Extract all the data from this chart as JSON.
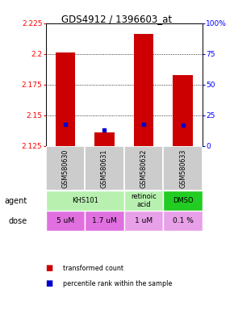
{
  "title": "GDS4912 / 1396603_at",
  "samples": [
    "GSM580630",
    "GSM580631",
    "GSM580632",
    "GSM580633"
  ],
  "bar_bottoms": [
    2.125,
    2.125,
    2.125,
    2.125
  ],
  "bar_tops": [
    2.201,
    2.136,
    2.216,
    2.183
  ],
  "blue_values": [
    2.143,
    2.138,
    2.143,
    2.142
  ],
  "y_min": 2.125,
  "y_max": 2.225,
  "y_ticks_left": [
    2.125,
    2.15,
    2.175,
    2.2,
    2.225
  ],
  "y_ticks_right": [
    0,
    25,
    50,
    75,
    100
  ],
  "bar_color": "#cc0000",
  "blue_color": "#0000cc",
  "agent_info": [
    {
      "col": 0,
      "span": 2,
      "text": "KHS101",
      "color": "#b8f0b0"
    },
    {
      "col": 2,
      "span": 1,
      "text": "retinoic\nacid",
      "color": "#b8f0b0"
    },
    {
      "col": 3,
      "span": 1,
      "text": "DMSO",
      "color": "#22cc22"
    }
  ],
  "dose_info": [
    {
      "col": 0,
      "text": "5 uM",
      "color": "#e070e0"
    },
    {
      "col": 1,
      "text": "1.7 uM",
      "color": "#e070e0"
    },
    {
      "col": 2,
      "text": "1 uM",
      "color": "#e8a0e8"
    },
    {
      "col": 3,
      "text": "0.1 %",
      "color": "#e8a0e8"
    }
  ],
  "sample_bg_color": "#cccccc",
  "legend_red": "transformed count",
  "legend_blue": "percentile rank within the sample"
}
